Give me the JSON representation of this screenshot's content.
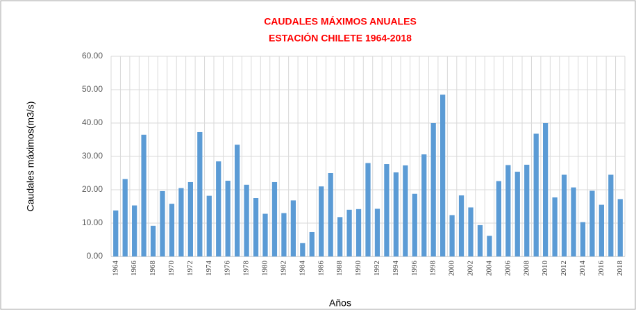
{
  "chart_data": {
    "type": "bar",
    "title": "CAUDALES MÁXIMOS ANUALES",
    "subtitle": "ESTACIÓN CHILETE 1964-2018",
    "x_label": "Años",
    "y_label": "Caudales máximos(m3/s)",
    "categories": [
      "1964",
      null,
      "1966",
      null,
      "1968",
      null,
      "1970",
      null,
      "1972",
      null,
      "1974",
      null,
      "1976",
      null,
      "1978",
      null,
      "1980",
      null,
      "1982",
      null,
      "1984",
      null,
      "1986",
      null,
      "1988",
      null,
      "1990",
      null,
      "1992",
      null,
      "1994",
      null,
      "1996",
      null,
      "1998",
      null,
      "2000",
      null,
      "2002",
      null,
      "2004",
      null,
      "2006",
      null,
      "2008",
      null,
      "2010",
      null,
      "2012",
      null,
      "2014",
      null,
      "2016",
      null,
      "2018"
    ],
    "values": [
      13.8,
      23.2,
      15.3,
      36.5,
      9.2,
      19.6,
      15.8,
      20.5,
      22.3,
      37.3,
      18.2,
      28.5,
      22.7,
      33.5,
      21.5,
      17.5,
      12.8,
      22.3,
      13.0,
      16.8,
      4.0,
      7.3,
      21.0,
      25.0,
      11.8,
      14.0,
      14.2,
      28.0,
      14.3,
      27.7,
      25.2,
      27.3,
      18.8,
      30.6,
      40.0,
      48.5,
      12.4,
      18.3,
      14.7,
      9.4,
      6.2,
      22.6,
      27.4,
      25.4,
      27.5,
      36.8,
      40.0,
      17.7,
      24.5,
      20.7,
      10.3,
      19.7,
      15.5,
      24.5,
      17.2
    ],
    "color": "#5b9bd5",
    "ylim": [
      0,
      60
    ],
    "yticks": [
      {
        "value": 0,
        "label": "0.00"
      },
      {
        "value": 10,
        "label": "10.00"
      },
      {
        "value": 20,
        "label": "20.00"
      },
      {
        "value": 30,
        "label": "30.00"
      },
      {
        "value": 40,
        "label": "40.00"
      },
      {
        "value": 50,
        "label": "50.00"
      },
      {
        "value": 60,
        "label": "60.00"
      }
    ],
    "grid": true
  }
}
